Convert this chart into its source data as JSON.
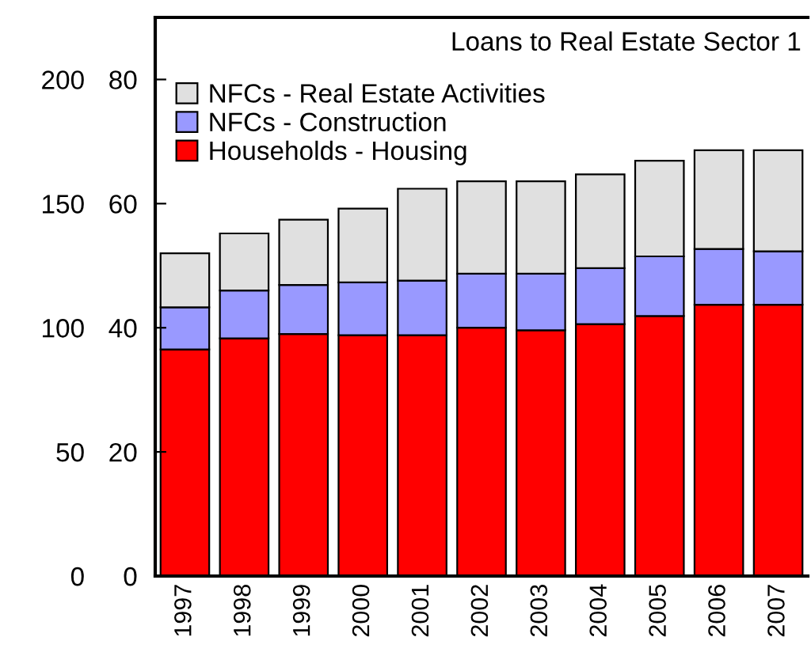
{
  "chart_data": {
    "type": "bar",
    "stacked": true,
    "title": "Loans to Real Estate Sector 1",
    "categories": [
      "1997",
      "1998",
      "1999",
      "2000",
      "2001",
      "2002",
      "2003",
      "2004",
      "2005",
      "2006",
      "2007"
    ],
    "series": [
      {
        "name": "Households - Housing",
        "color": "#ff0000",
        "values": [
          36.5,
          38.3,
          39.0,
          38.8,
          38.8,
          40.0,
          39.6,
          40.6,
          41.9,
          43.7,
          43.7
        ]
      },
      {
        "name": "NFCs - Construction",
        "color": "#9999ff",
        "values": [
          6.8,
          7.7,
          7.9,
          8.5,
          8.8,
          8.7,
          9.1,
          9.0,
          9.6,
          9.0,
          8.6
        ]
      },
      {
        "name": "NFCs - Real Estate Activities",
        "color": "#e0e0e0",
        "values": [
          8.7,
          9.2,
          10.5,
          11.9,
          14.8,
          14.9,
          14.9,
          15.1,
          15.4,
          15.9,
          16.3
        ]
      }
    ],
    "ylim": [
      0,
      90
    ],
    "yticks": [
      0,
      20,
      40,
      60,
      80
    ],
    "y2lim": [
      0,
      225
    ],
    "y2ticks": [
      0,
      50,
      100,
      150,
      200
    ],
    "legend": "top left",
    "grid": false
  }
}
